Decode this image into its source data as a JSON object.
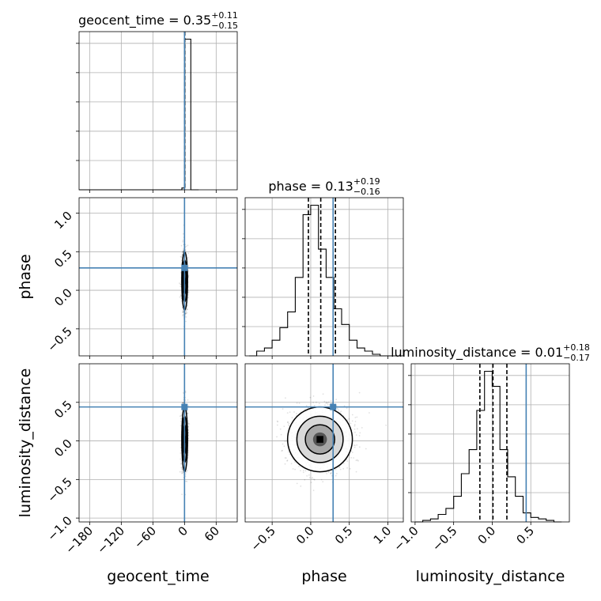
{
  "chart_data": {
    "type": "corner",
    "parameters": [
      "geocent_time",
      "phase",
      "luminosity_distance"
    ],
    "truth": {
      "geocent_time": 0.0,
      "phase": 0.29,
      "luminosity_distance": 0.44
    },
    "titles": [
      {
        "param": "geocent_time",
        "label": "geocent_time = ",
        "median": "0.35",
        "plus": "+0.11",
        "minus": "−0.15"
      },
      {
        "param": "phase",
        "label": "phase = ",
        "median": "0.13",
        "plus": "+0.19",
        "minus": "−0.16"
      },
      {
        "param": "luminosity_distance",
        "label": "luminosity_distance = ",
        "median": "0.01",
        "plus": "+0.18",
        "minus": "−0.17"
      }
    ],
    "axes": {
      "geocent_time": {
        "range": [
          -200,
          100
        ],
        "ticks": [
          -180,
          -120,
          -60,
          0,
          60
        ],
        "ticklabels": [
          "−180",
          "−120",
          "−60",
          "0",
          "60"
        ]
      },
      "phase": {
        "range": [
          -0.85,
          1.2
        ],
        "ticks": [
          -0.5,
          0.0,
          0.5,
          1.0
        ],
        "ticklabels": [
          "−0.5",
          "0.0",
          "0.5",
          "1.0"
        ]
      },
      "luminosity_distance": {
        "range": [
          -1.05,
          1.0
        ],
        "ticks": [
          -1.0,
          -0.5,
          0.0,
          0.5
        ],
        "ticklabels": [
          "−1.0",
          "−0.5",
          "0.0",
          "0.5"
        ]
      }
    },
    "histograms": {
      "geocent_time": {
        "edges": [
          -200,
          -185,
          -170,
          -155,
          -140,
          -125,
          -110,
          -95,
          -80,
          -65,
          -50,
          -35,
          -20,
          -5,
          0.5,
          12,
          27
        ],
        "counts": [
          0,
          0,
          0,
          0,
          0,
          0,
          0,
          0,
          0,
          0,
          0,
          0,
          0,
          0.012,
          1.0,
          0,
          0
        ],
        "quantiles": [
          0.2,
          0.35,
          0.46
        ]
      },
      "phase": {
        "edges": [
          -0.8,
          -0.7,
          -0.6,
          -0.5,
          -0.4,
          -0.3,
          -0.2,
          -0.1,
          0.0,
          0.1,
          0.2,
          0.3,
          0.4,
          0.5,
          0.6,
          0.7,
          0.8,
          0.9,
          1.0,
          1.1,
          1.2
        ],
        "counts": [
          0.0,
          0.03,
          0.05,
          0.1,
          0.18,
          0.28,
          0.5,
          0.9,
          0.96,
          0.68,
          0.5,
          0.3,
          0.2,
          0.1,
          0.05,
          0.03,
          0.01,
          0.0,
          0.0,
          0.0
        ],
        "quantiles": [
          -0.03,
          0.13,
          0.32
        ]
      },
      "luminosity_distance": {
        "edges": [
          -1.0,
          -0.9,
          -0.8,
          -0.7,
          -0.6,
          -0.5,
          -0.4,
          -0.3,
          -0.2,
          -0.1,
          0.0,
          0.1,
          0.2,
          0.3,
          0.4,
          0.5,
          0.6,
          0.7,
          0.8,
          0.9
        ],
        "counts": [
          0.0,
          0.01,
          0.02,
          0.05,
          0.09,
          0.17,
          0.32,
          0.48,
          0.74,
          1.0,
          0.9,
          0.48,
          0.3,
          0.17,
          0.06,
          0.03,
          0.02,
          0.01,
          0.0
        ],
        "quantiles": [
          -0.16,
          0.01,
          0.19
        ]
      }
    },
    "scatter2d": [
      {
        "x": "geocent_time",
        "y": "phase",
        "center": [
          0.3,
          0.12
        ],
        "spread": [
          2.6,
          0.18
        ]
      },
      {
        "x": "geocent_time",
        "y": "luminosity_distance",
        "center": [
          0.3,
          0.02
        ],
        "spread": [
          2.6,
          0.2
        ]
      },
      {
        "x": "phase",
        "y": "luminosity_distance",
        "center": [
          0.12,
          0.02
        ],
        "spread": [
          0.2,
          0.2
        ]
      }
    ],
    "grid": true,
    "truth_color": "#4682b4",
    "hist_color": "#000000",
    "quantile_style": "dashed"
  }
}
